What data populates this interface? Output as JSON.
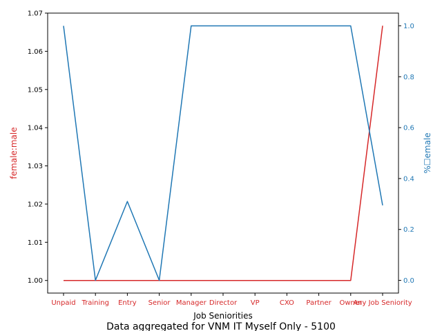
{
  "chart_data": {
    "type": "line",
    "title": "Data aggregated for VNM IT Myself Only - 5100",
    "xlabel": "Job Seniorities",
    "ylabel_left": "female:male",
    "ylabel_right": "%☐emale",
    "categories": [
      "Unpaid",
      "Training",
      "Entry",
      "Senior",
      "Manager",
      "Director",
      "VP",
      "CXO",
      "Partner",
      "Owner",
      "Any Job Seniority"
    ],
    "ylim_left": [
      0.9967,
      1.07
    ],
    "ylim_right": [
      -0.05,
      1.05
    ],
    "yticks_left": [
      "1.00",
      "1.01",
      "1.02",
      "1.03",
      "1.04",
      "1.05",
      "1.06",
      "1.07"
    ],
    "yticks_right": [
      "0.0",
      "0.2",
      "0.4",
      "0.6",
      "0.8",
      "1.0"
    ],
    "grid": false,
    "series": [
      {
        "axis": "left",
        "color": "#d62728",
        "values": [
          1.0,
          1.0,
          1.0,
          1.0,
          1.0,
          1.0,
          1.0,
          1.0,
          1.0,
          1.0,
          1.0667
        ]
      },
      {
        "axis": "right",
        "color": "#1f77b4",
        "values": [
          1.0,
          0.0,
          0.31,
          0.0,
          1.0,
          1.0,
          1.0,
          1.0,
          1.0,
          1.0,
          0.295
        ]
      }
    ],
    "colors": {
      "left_axis": "#d62728",
      "right_axis": "#1f77b4",
      "axes": "#000000"
    }
  }
}
